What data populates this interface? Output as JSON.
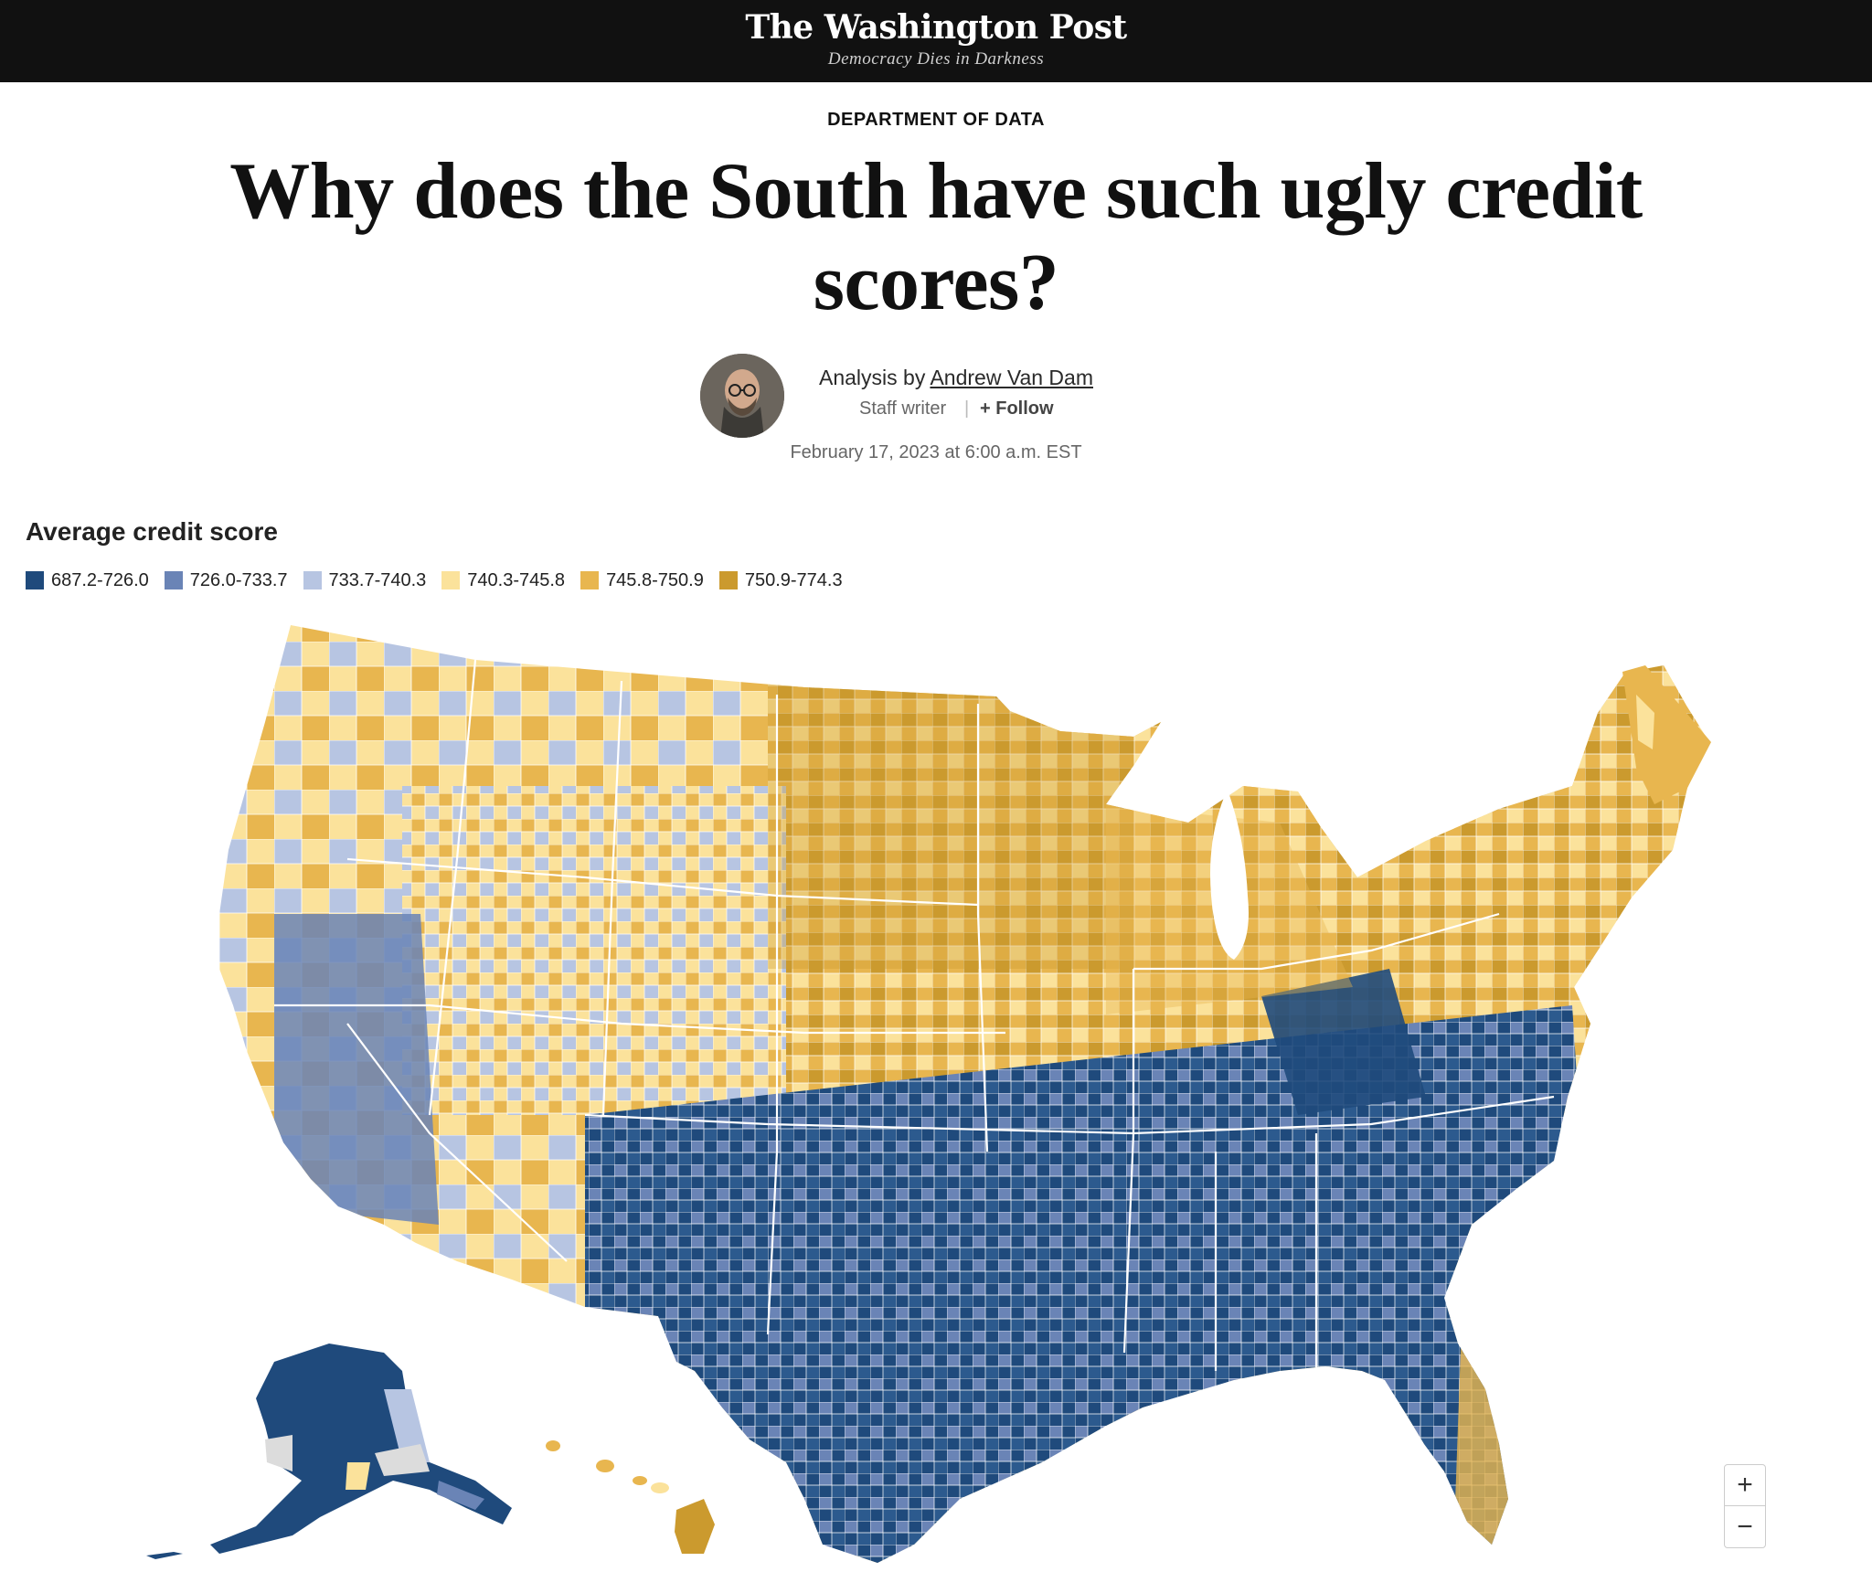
{
  "header": {
    "masthead": "The Washington Post",
    "tagline": "Democracy Dies in Darkness"
  },
  "article": {
    "kicker": "DEPARTMENT OF DATA",
    "headline": "Why does the South have such ugly credit scores?",
    "byline_prefix": "Analysis by",
    "author": "Andrew Van Dam",
    "role": "Staff writer",
    "separator": "|",
    "follow": "+ Follow",
    "date": "February 17, 2023 at 6:00 a.m. EST"
  },
  "chart": {
    "title": "Average credit score",
    "legend": [
      {
        "label": "687.2-726.0",
        "color": "#1f4a7c"
      },
      {
        "label": "726.0-733.7",
        "color": "#6a84b6"
      },
      {
        "label": "733.7-740.3",
        "color": "#b7c5e2"
      },
      {
        "label": "740.3-745.8",
        "color": "#fbe29b"
      },
      {
        "label": "745.8-750.9",
        "color": "#e8b64f"
      },
      {
        "label": "750.9-774.3",
        "color": "#cb9a2e"
      }
    ],
    "no_data_color": "#dcdcdc"
  },
  "controls": {
    "zoom_in": "+",
    "zoom_out": "−"
  }
}
